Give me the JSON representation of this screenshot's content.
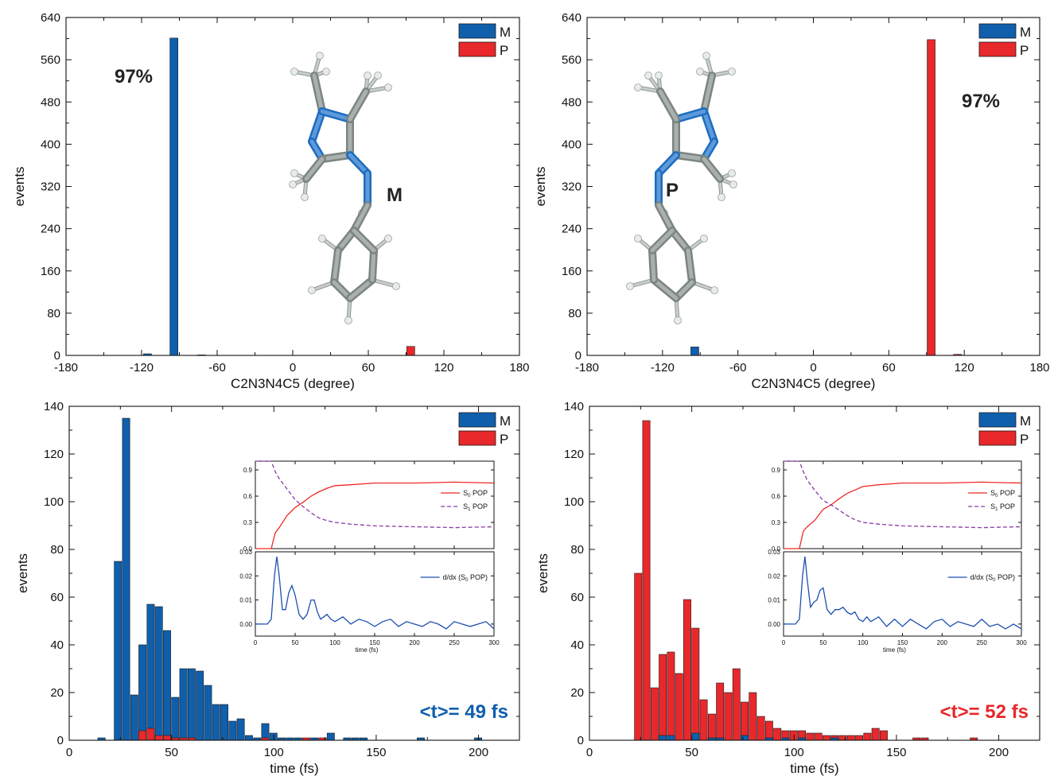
{
  "colors": {
    "M": "#0f5fad",
    "P": "#e8282b",
    "S0": "#ee2a24",
    "S1": "#8a3aa8",
    "deriv": "#1d4fb0",
    "molecule_c": "#a9b0ad",
    "molecule_n": "#1e6cc0",
    "molecule_h": "#e8ece9"
  },
  "chart_data": [
    {
      "type": "bar",
      "xlabel": "C2N3N4C5 (degree)",
      "ylabel": "events",
      "xlim": [
        -180,
        180
      ],
      "ylim": [
        0,
        640
      ],
      "xticks": [
        -180,
        -120,
        -60,
        0,
        60,
        120,
        180
      ],
      "yticks": [
        0,
        80,
        160,
        240,
        320,
        400,
        480,
        560,
        640
      ],
      "legend": [
        "M",
        "P"
      ],
      "legend_position": "top-right",
      "annotations": {
        "percent": "97%",
        "isomer_label": "M"
      },
      "bin_width": 7,
      "series": [
        {
          "name": "M",
          "color_key": "M",
          "x": [
            -115,
            -94,
            -72
          ],
          "values": [
            3,
            601,
            1
          ]
        },
        {
          "name": "P",
          "color_key": "P",
          "x": [
            94
          ],
          "values": [
            17
          ]
        }
      ]
    },
    {
      "type": "bar",
      "xlabel": "C2N3N4C5 (degree)",
      "ylabel": "events",
      "xlim": [
        -180,
        180
      ],
      "ylim": [
        0,
        640
      ],
      "xticks": [
        -180,
        -120,
        -60,
        0,
        60,
        120,
        180
      ],
      "yticks": [
        0,
        80,
        160,
        240,
        320,
        400,
        480,
        560,
        640
      ],
      "legend": [
        "M",
        "P"
      ],
      "legend_position": "top-right",
      "annotations": {
        "percent": "97%",
        "isomer_label": "P"
      },
      "bin_width": 7,
      "series": [
        {
          "name": "M",
          "color_key": "M",
          "x": [
            -94
          ],
          "values": [
            16
          ]
        },
        {
          "name": "P",
          "color_key": "P",
          "x": [
            94,
            115
          ],
          "values": [
            598,
            2
          ]
        }
      ]
    },
    {
      "type": "bar",
      "xlabel": "time (fs)",
      "ylabel": "events",
      "xlim": [
        0,
        220
      ],
      "ylim": [
        0,
        140
      ],
      "xticks": [
        0,
        50,
        100,
        150,
        200
      ],
      "yticks": [
        0,
        20,
        40,
        60,
        80,
        100,
        120,
        140
      ],
      "legend": [
        "M",
        "P"
      ],
      "legend_position": "top-right",
      "annotations": {
        "mean": "<t>= 49 fs",
        "mean_color_key": "M"
      },
      "bin_width": 4,
      "series": [
        {
          "name": "M",
          "color_key": "M",
          "x": [
            16,
            20,
            24,
            28,
            32,
            36,
            40,
            44,
            48,
            52,
            56,
            60,
            64,
            68,
            72,
            76,
            80,
            84,
            88,
            92,
            96,
            100,
            104,
            108,
            112,
            116,
            120,
            124,
            128,
            132,
            136,
            140,
            144,
            148,
            152,
            156,
            160,
            164,
            168,
            172,
            176,
            180,
            184,
            188,
            192,
            196,
            200,
            204,
            208
          ],
          "values": [
            1,
            0,
            75,
            135,
            19,
            40,
            57,
            56,
            46,
            18,
            30,
            30,
            29,
            23,
            15,
            15,
            8,
            9,
            2,
            1,
            7,
            3,
            1,
            1,
            1,
            0,
            1,
            0,
            3,
            0,
            1,
            1,
            1,
            0,
            0,
            0,
            0,
            0,
            0,
            1,
            0,
            0,
            0,
            0,
            0,
            0,
            1,
            0,
            0
          ]
        },
        {
          "name": "P",
          "color_key": "P",
          "x": [
            36,
            40,
            44,
            48,
            52,
            56,
            60,
            64,
            96,
            116,
            124
          ],
          "values": [
            4,
            5,
            2,
            2,
            1,
            1,
            1,
            0,
            1,
            1,
            1
          ]
        }
      ],
      "insets": [
        {
          "type": "line",
          "xlim": [
            0,
            300
          ],
          "ylim": [
            0,
            1.0
          ],
          "yticks": [
            0.0,
            0.3,
            0.6,
            0.9
          ],
          "ytick_labels": [
            "0.0",
            "0.3",
            "0.6",
            "0.9"
          ],
          "series": [
            {
              "name": "S0 POP",
              "legend_main": "S",
              "legend_sub": "0",
              "legend_rest": " POP",
              "color_key": "S0",
              "dash": false,
              "x": [
                0,
                20,
                25,
                30,
                40,
                50,
                60,
                70,
                80,
                90,
                100,
                120,
                150,
                200,
                250,
                300
              ],
              "values": [
                0,
                0,
                0.18,
                0.24,
                0.38,
                0.47,
                0.53,
                0.6,
                0.65,
                0.69,
                0.72,
                0.73,
                0.75,
                0.75,
                0.76,
                0.75
              ]
            },
            {
              "name": "S1 POP",
              "legend_main": "S",
              "legend_sub": "1",
              "legend_rest": " POP",
              "color_key": "S1",
              "dash": true,
              "x": [
                0,
                20,
                25,
                30,
                40,
                50,
                60,
                70,
                80,
                90,
                100,
                120,
                150,
                200,
                250,
                300
              ],
              "values": [
                1.0,
                1.0,
                0.88,
                0.8,
                0.68,
                0.56,
                0.48,
                0.41,
                0.35,
                0.32,
                0.3,
                0.28,
                0.26,
                0.25,
                0.24,
                0.25
              ]
            }
          ]
        },
        {
          "type": "line",
          "xlabel": "time (fs)",
          "xlim": [
            0,
            300
          ],
          "ylim": [
            -0.005,
            0.03
          ],
          "xticks": [
            0,
            50,
            100,
            150,
            200,
            250,
            300
          ],
          "yticks": [
            0.0,
            0.01,
            0.02,
            0.03
          ],
          "ytick_labels": [
            "0.00",
            "0.01",
            "0.02",
            "0.03"
          ],
          "series": [
            {
              "name": "d/dx (S0 POP)",
              "legend_main": "d/dx (S",
              "legend_sub": "0",
              "legend_rest": " POP)",
              "color_key": "deriv",
              "dash": false,
              "x": [
                0,
                15,
                20,
                24,
                27,
                30,
                34,
                38,
                42,
                46,
                50,
                55,
                60,
                65,
                70,
                74,
                78,
                82,
                86,
                90,
                95,
                100,
                105,
                110,
                120,
                130,
                140,
                150,
                160,
                170,
                180,
                190,
                200,
                210,
                220,
                230,
                240,
                250,
                260,
                270,
                280,
                290,
                300
              ],
              "values": [
                0,
                0,
                0.002,
                0.02,
                0.028,
                0.02,
                0.006,
                0.006,
                0.013,
                0.016,
                0.012,
                0.004,
                0.002,
                0.004,
                0.01,
                0.01,
                0.005,
                0.002,
                0.003,
                0.004,
                0.002,
                0.001,
                0.002,
                0.003,
                0.0,
                0.002,
                0.001,
                -0.001,
                0.001,
                0.002,
                -0.001,
                0.001,
                0.0,
                -0.001,
                0.001,
                0.0,
                -0.002,
                0.001,
                0.0,
                -0.001,
                0.0,
                0.001,
                -0.002
              ]
            }
          ]
        }
      ]
    },
    {
      "type": "bar",
      "xlabel": "time (fs)",
      "ylabel": "events",
      "xlim": [
        0,
        220
      ],
      "ylim": [
        0,
        140
      ],
      "xticks": [
        0,
        50,
        100,
        150,
        200
      ],
      "yticks": [
        0,
        20,
        40,
        60,
        80,
        100,
        120,
        140
      ],
      "legend": [
        "M",
        "P"
      ],
      "legend_position": "top-right",
      "annotations": {
        "mean": "<t>= 52 fs",
        "mean_color_key": "P"
      },
      "bin_width": 4,
      "series": [
        {
          "name": "P",
          "color_key": "P",
          "x": [
            24,
            28,
            32,
            36,
            40,
            44,
            48,
            52,
            56,
            60,
            64,
            68,
            72,
            76,
            80,
            84,
            88,
            92,
            96,
            100,
            104,
            108,
            112,
            116,
            120,
            124,
            128,
            132,
            136,
            140,
            144,
            148,
            152,
            156,
            160,
            164,
            168,
            172,
            176,
            180,
            184,
            188
          ],
          "values": [
            70,
            134,
            22,
            36,
            37,
            28,
            59,
            47,
            17,
            11,
            24,
            20,
            30,
            16,
            20,
            10,
            8,
            5,
            4,
            4,
            4,
            3,
            3,
            2,
            2,
            2,
            2,
            2,
            3,
            5,
            4,
            0,
            0,
            0,
            1,
            1,
            0,
            0,
            0,
            0,
            0,
            1
          ]
        },
        {
          "name": "M",
          "color_key": "M",
          "x": [
            36,
            40,
            52,
            60,
            64,
            76,
            88,
            96,
            104,
            120
          ],
          "values": [
            2,
            2,
            3,
            1,
            1,
            2,
            1,
            1,
            1,
            1
          ]
        }
      ],
      "insets": [
        {
          "type": "line",
          "xlim": [
            0,
            300
          ],
          "ylim": [
            0,
            1.0
          ],
          "yticks": [
            0.0,
            0.3,
            0.6,
            0.9
          ],
          "ytick_labels": [
            "0.0",
            "0.3",
            "0.6",
            "0.9"
          ],
          "series": [
            {
              "name": "S0 POP",
              "legend_main": "S",
              "legend_sub": "0",
              "legend_rest": " POP",
              "color_key": "S0",
              "dash": false,
              "x": [
                0,
                20,
                25,
                30,
                40,
                50,
                60,
                70,
                80,
                90,
                100,
                120,
                150,
                200,
                250,
                300
              ],
              "values": [
                0,
                0,
                0.2,
                0.25,
                0.33,
                0.45,
                0.5,
                0.57,
                0.63,
                0.67,
                0.71,
                0.73,
                0.75,
                0.75,
                0.76,
                0.75
              ]
            },
            {
              "name": "S1 POP",
              "legend_main": "S",
              "legend_sub": "1",
              "legend_rest": " POP",
              "color_key": "S1",
              "dash": true,
              "x": [
                0,
                20,
                25,
                30,
                40,
                50,
                60,
                70,
                80,
                90,
                100,
                120,
                150,
                200,
                250,
                300
              ],
              "values": [
                1.0,
                1.0,
                0.88,
                0.78,
                0.66,
                0.55,
                0.5,
                0.44,
                0.38,
                0.33,
                0.3,
                0.28,
                0.26,
                0.25,
                0.24,
                0.25
              ]
            }
          ]
        },
        {
          "type": "line",
          "xlabel": "time (fs)",
          "xlim": [
            0,
            300
          ],
          "ylim": [
            -0.005,
            0.03
          ],
          "xticks": [
            0,
            50,
            100,
            150,
            200,
            250,
            300
          ],
          "yticks": [
            0.0,
            0.01,
            0.02,
            0.03
          ],
          "ytick_labels": [
            "0.00",
            "0.01",
            "0.02",
            "0.03"
          ],
          "series": [
            {
              "name": "d/dx (S0 POP)",
              "legend_main": "d/dx (S",
              "legend_sub": "0",
              "legend_rest": " POP)",
              "color_key": "deriv",
              "dash": false,
              "x": [
                0,
                15,
                20,
                24,
                27,
                30,
                34,
                38,
                42,
                46,
                50,
                55,
                60,
                65,
                70,
                75,
                80,
                85,
                90,
                95,
                100,
                105,
                110,
                120,
                130,
                140,
                150,
                160,
                170,
                180,
                190,
                200,
                210,
                220,
                230,
                240,
                250,
                260,
                270,
                280,
                290,
                300
              ],
              "values": [
                0,
                0,
                0.002,
                0.02,
                0.028,
                0.018,
                0.007,
                0.009,
                0.01,
                0.014,
                0.015,
                0.006,
                0.004,
                0.006,
                0.006,
                0.007,
                0.005,
                0.004,
                0.005,
                0.002,
                0.001,
                0.003,
                0.001,
                0.003,
                -0.001,
                0.002,
                -0.001,
                0.002,
                0.0,
                -0.002,
                0.001,
                0.002,
                -0.001,
                0.001,
                0.0,
                -0.001,
                0.002,
                -0.001,
                0.0,
                -0.002,
                0.0,
                -0.002
              ]
            }
          ]
        }
      ]
    }
  ]
}
